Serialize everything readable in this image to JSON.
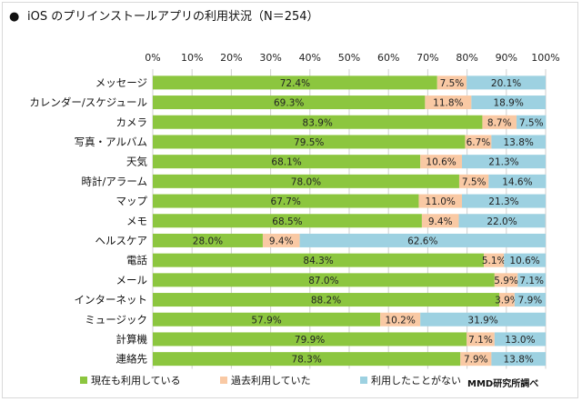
{
  "chart_data": {
    "type": "bar",
    "stacked": true,
    "orientation": "horizontal",
    "title": "iOS のプリインストールアプリの利用状況（N＝254）",
    "title_bullet": "●",
    "categories": [
      "メッセージ",
      "カレンダー/スケジュール",
      "カメラ",
      "写真・アルバム",
      "天気",
      "時計/アラーム",
      "マップ",
      "メモ",
      "ヘルスケア",
      "電話",
      "メール",
      "インターネット",
      "ミュージック",
      "計算機",
      "連絡先"
    ],
    "series": [
      {
        "name": "現在も利用している",
        "color": "#8cc63f",
        "values": [
          72.4,
          69.3,
          83.9,
          79.5,
          68.1,
          78.0,
          67.7,
          68.5,
          28.0,
          84.3,
          87.0,
          88.2,
          57.9,
          79.9,
          78.3
        ],
        "labels": [
          "72.4%",
          "69.3%",
          "83.9%",
          "79.5%",
          "68.1%",
          "78.0%",
          "67.7%",
          "68.5%",
          "28.0%",
          "84.3%",
          "87.0%",
          "88.2%",
          "57.9%",
          "79.9%",
          "78.3%"
        ]
      },
      {
        "name": "過去利用していた",
        "color": "#f9c9a4",
        "values": [
          7.5,
          11.8,
          8.7,
          6.7,
          10.6,
          7.5,
          11.0,
          9.4,
          9.4,
          5.1,
          5.9,
          3.9,
          10.2,
          7.1,
          7.9
        ],
        "labels": [
          "7.5%",
          "11.8%",
          "8.7%",
          "6.7%",
          "10.6%",
          "7.5%",
          "11.0%",
          "9.4%",
          "9.4%",
          "5.1%",
          "5.9%",
          "3.9%",
          "10.2%",
          "7.1%",
          "7.9%"
        ]
      },
      {
        "name": "利用したことがない",
        "color": "#9dd1e1",
        "values": [
          20.1,
          18.9,
          7.5,
          13.8,
          21.3,
          14.6,
          21.3,
          22.0,
          62.6,
          10.6,
          7.1,
          7.9,
          31.9,
          13.0,
          13.8
        ],
        "labels": [
          "20.1%",
          "18.9%",
          "7.5%",
          "13.8%",
          "21.3%",
          "14.6%",
          "21.3%",
          "22.0%",
          "62.6%",
          "10.6%",
          "7.1%",
          "7.9%",
          "31.9%",
          "13.0%",
          "13.8%"
        ]
      }
    ],
    "x_ticks": [
      "0%",
      "10%",
      "20%",
      "30%",
      "40%",
      "50%",
      "60%",
      "70%",
      "80%",
      "90%",
      "100%"
    ],
    "xlim": [
      0,
      100
    ],
    "grid": true,
    "legend_position": "bottom",
    "credit": "MMD研究所調べ"
  }
}
